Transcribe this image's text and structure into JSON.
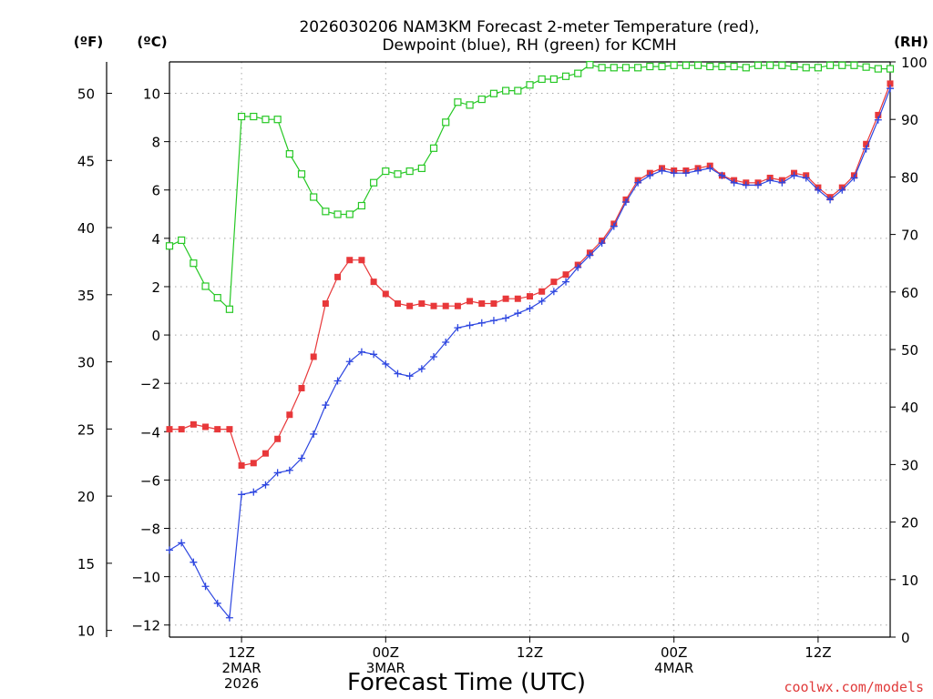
{
  "chart_data": {
    "type": "line",
    "title": [
      "2026030206 NAM3KM Forecast 2-meter Temperature (red),",
      "Dewpoint (blue), RH (green) for KCMH"
    ],
    "xlabel": "Forecast Time (UTC)",
    "credit": "coolwx.com/models",
    "units": {
      "fahrenheit": "(ºF)",
      "celsius": "(ºC)",
      "rh": "(RH)"
    },
    "x_range_hours": [
      6,
      66
    ],
    "x_ticks": [
      {
        "hour": 12,
        "lines": [
          "12Z",
          "2MAR",
          "2026"
        ]
      },
      {
        "hour": 24,
        "lines": [
          "00Z",
          "3MAR"
        ]
      },
      {
        "hour": 36,
        "lines": [
          "12Z"
        ]
      },
      {
        "hour": 48,
        "lines": [
          "00Z",
          "4MAR"
        ]
      },
      {
        "hour": 60,
        "lines": [
          "12Z"
        ]
      }
    ],
    "celsius_axis": {
      "range": [
        -12.5,
        11.3
      ],
      "ticks": [
        -12,
        -10,
        -8,
        -6,
        -4,
        -2,
        0,
        2,
        4,
        6,
        8,
        10
      ]
    },
    "fahrenheit_axis": {
      "ticks": [
        10,
        15,
        20,
        25,
        30,
        35,
        40,
        45,
        50
      ]
    },
    "rh_axis": {
      "range": [
        0,
        100
      ],
      "ticks": [
        0,
        10,
        20,
        30,
        40,
        50,
        60,
        70,
        80,
        90,
        100
      ]
    },
    "series": [
      {
        "name": "2-meter Temperature",
        "color": "#e8383a",
        "marker": "filled-square",
        "axis": "celsius",
        "x": [
          6,
          7,
          8,
          9,
          10,
          11,
          12,
          13,
          14,
          15,
          16,
          17,
          18,
          19,
          20,
          21,
          22,
          23,
          24,
          25,
          26,
          27,
          28,
          29,
          30,
          31,
          32,
          33,
          34,
          35,
          36,
          37,
          38,
          39,
          40,
          41,
          42,
          43,
          44,
          45,
          46,
          47,
          48,
          49,
          50,
          51,
          52,
          53,
          54,
          55,
          56,
          57,
          58,
          59,
          60,
          61,
          62,
          63,
          64,
          65,
          66
        ],
        "values": [
          -3.9,
          -3.9,
          -3.7,
          -3.8,
          -3.9,
          -3.9,
          -5.4,
          -5.3,
          -4.9,
          -4.3,
          -3.3,
          -2.2,
          -0.9,
          1.3,
          2.4,
          3.1,
          3.1,
          2.2,
          1.7,
          1.3,
          1.2,
          1.3,
          1.2,
          1.2,
          1.2,
          1.4,
          1.3,
          1.3,
          1.5,
          1.5,
          1.6,
          1.8,
          2.2,
          2.5,
          2.9,
          3.4,
          3.9,
          4.6,
          5.6,
          6.4,
          6.7,
          6.9,
          6.8,
          6.8,
          6.9,
          7.0,
          6.6,
          6.4,
          6.3,
          6.3,
          6.5,
          6.4,
          6.7,
          6.6,
          6.1,
          5.7,
          6.1,
          6.6,
          7.9,
          9.1,
          10.4
        ]
      },
      {
        "name": "Dewpoint",
        "color": "#2d46e0",
        "marker": "plus",
        "axis": "celsius",
        "x": [
          6,
          7,
          8,
          9,
          10,
          11,
          12,
          13,
          14,
          15,
          16,
          17,
          18,
          19,
          20,
          21,
          22,
          23,
          24,
          25,
          26,
          27,
          28,
          29,
          30,
          31,
          32,
          33,
          34,
          35,
          36,
          37,
          38,
          39,
          40,
          41,
          42,
          43,
          44,
          45,
          46,
          47,
          48,
          49,
          50,
          51,
          52,
          53,
          54,
          55,
          56,
          57,
          58,
          59,
          60,
          61,
          62,
          63,
          64,
          65,
          66
        ],
        "values": [
          -8.9,
          -8.6,
          -9.4,
          -10.4,
          -11.1,
          -11.7,
          -6.6,
          -6.5,
          -6.2,
          -5.7,
          -5.6,
          -5.1,
          -4.1,
          -2.9,
          -1.9,
          -1.1,
          -0.7,
          -0.8,
          -1.2,
          -1.6,
          -1.7,
          -1.4,
          -0.9,
          -0.3,
          0.3,
          0.4,
          0.5,
          0.6,
          0.7,
          0.9,
          1.1,
          1.4,
          1.8,
          2.2,
          2.8,
          3.3,
          3.8,
          4.5,
          5.5,
          6.3,
          6.6,
          6.8,
          6.7,
          6.7,
          6.8,
          6.9,
          6.6,
          6.3,
          6.2,
          6.2,
          6.4,
          6.3,
          6.6,
          6.5,
          6.0,
          5.6,
          6.0,
          6.5,
          7.7,
          8.9,
          10.2
        ]
      },
      {
        "name": "RH",
        "color": "#27c825",
        "marker": "open-square",
        "axis": "rh",
        "x": [
          6,
          7,
          8,
          9,
          10,
          11,
          12,
          13,
          14,
          15,
          16,
          17,
          18,
          19,
          20,
          21,
          22,
          23,
          24,
          25,
          26,
          27,
          28,
          29,
          30,
          31,
          32,
          33,
          34,
          35,
          36,
          37,
          38,
          39,
          40,
          41,
          42,
          43,
          44,
          45,
          46,
          47,
          48,
          49,
          50,
          51,
          52,
          53,
          54,
          55,
          56,
          57,
          58,
          59,
          60,
          61,
          62,
          63,
          64,
          65,
          66
        ],
        "values": [
          68,
          69,
          65,
          61,
          59,
          57,
          90.5,
          90.5,
          90,
          90,
          84,
          80.5,
          76.5,
          74,
          73.5,
          73.5,
          75,
          79,
          81,
          80.5,
          81,
          81.5,
          85,
          89.5,
          93,
          92.5,
          93.5,
          94.5,
          95,
          95,
          96,
          97,
          97,
          97.5,
          98,
          99.5,
          99,
          99,
          99,
          99,
          99.2,
          99.2,
          99.4,
          99.4,
          99.4,
          99.2,
          99.2,
          99.2,
          99,
          99.4,
          99.4,
          99.4,
          99.2,
          99,
          99,
          99.4,
          99.4,
          99.4,
          99.1,
          98.8,
          98.8
        ]
      }
    ]
  }
}
